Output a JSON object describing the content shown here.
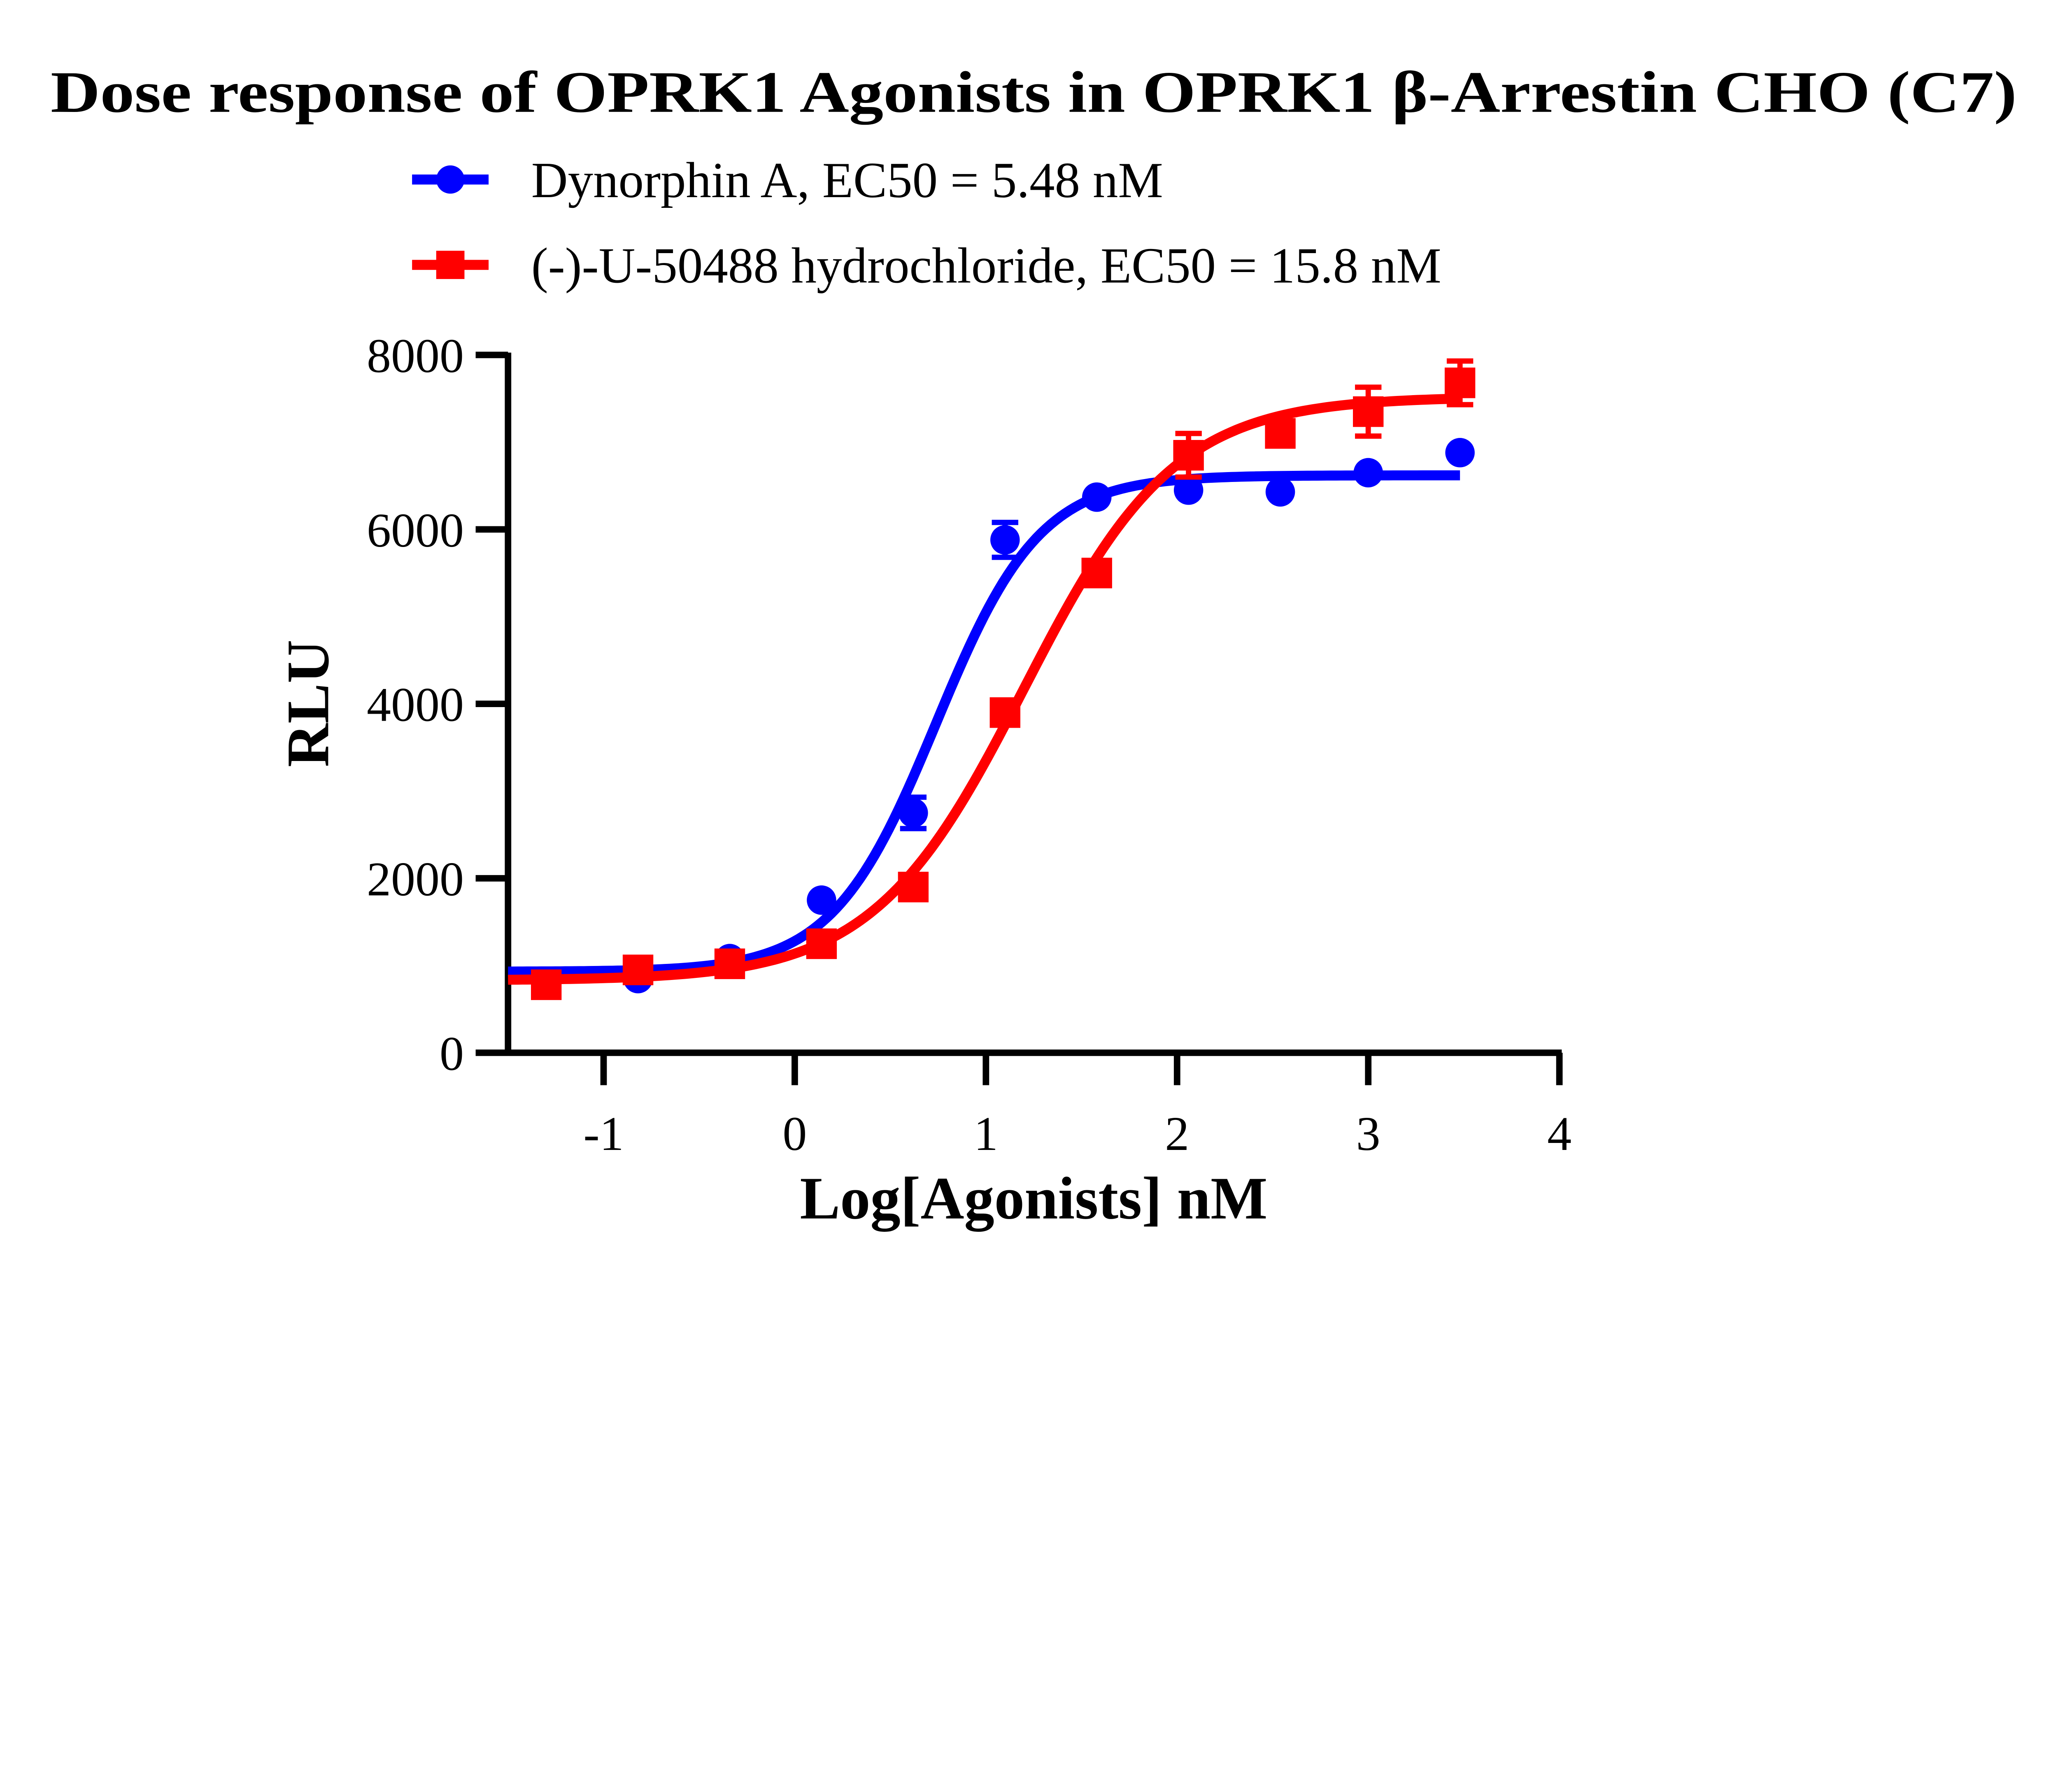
{
  "chart_data": {
    "type": "scatter",
    "title": "Dose response of OPRK1 Agonists in OPRK1 β-Arrestin CHO (C7)",
    "xlabel": "Log[Agonists] nM",
    "ylabel": "RLU",
    "xlim": [
      -1.5,
      4
    ],
    "ylim": [
      0,
      8000
    ],
    "xticks": [
      -1,
      0,
      1,
      2,
      3,
      4
    ],
    "xtick_labels": [
      "-1",
      "0",
      "1",
      "2",
      "3",
      "4"
    ],
    "yticks": [
      0,
      2000,
      4000,
      6000,
      8000
    ],
    "ytick_labels": [
      "0",
      "2000",
      "4000",
      "6000",
      "8000"
    ],
    "grid": false,
    "legend_placement": "top",
    "series": [
      {
        "name": "Dynorphin A, EC50 = 5.48 nM",
        "color": "#0000ff",
        "marker": "circle",
        "x": [
          -0.82,
          -0.34,
          0.14,
          0.62,
          1.1,
          1.58,
          2.06,
          2.54,
          3.0,
          3.48
        ],
        "y": [
          850,
          1080,
          1750,
          2750,
          5880,
          6370,
          6450,
          6430,
          6650,
          6880
        ],
        "err": [
          0,
          60,
          0,
          180,
          200,
          0,
          0,
          0,
          0,
          0
        ],
        "fit": {
          "bottom": 930,
          "top": 6620,
          "logEC50": 0.739,
          "hill": 1.6,
          "x_range": [
            -1.5,
            3.48
          ]
        }
      },
      {
        "name": "(-)-U-50488 hydrochloride, EC50 = 15.8 nM",
        "color": "#ff0000",
        "marker": "square",
        "x": [
          -1.3,
          -0.82,
          -0.34,
          0.14,
          0.62,
          1.1,
          1.58,
          2.06,
          2.54,
          3.0,
          3.48
        ],
        "y": [
          780,
          950,
          1020,
          1250,
          1900,
          3900,
          5500,
          6850,
          7100,
          7350,
          7680
        ],
        "err": [
          0,
          0,
          0,
          0,
          0,
          0,
          80,
          250,
          80,
          280,
          250
        ],
        "fit": {
          "bottom": 830,
          "top": 7520,
          "logEC50": 1.199,
          "hill": 1.1,
          "x_range": [
            -1.5,
            3.48
          ]
        }
      }
    ]
  }
}
